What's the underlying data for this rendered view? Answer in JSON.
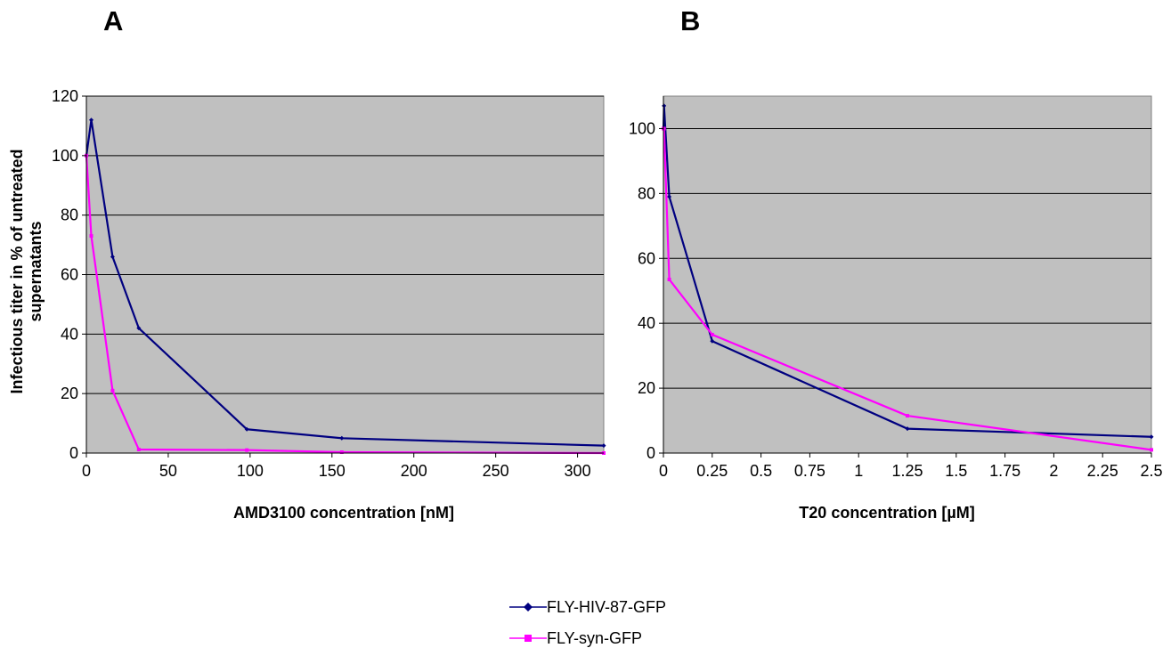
{
  "panels": [
    {
      "letter": "A",
      "ylabel_line1": "Infectious titer in % of untreated",
      "ylabel_line2": "supernatants",
      "xlabel": "AMD3100 concentration  [nM]",
      "xticks": [
        "0",
        "50",
        "100",
        "150",
        "200",
        "250",
        "300"
      ],
      "yticks": [
        "0",
        "20",
        "40",
        "60",
        "80",
        "100",
        "120"
      ]
    },
    {
      "letter": "B",
      "xlabel": "T20 concentration [µM]",
      "xticks": [
        "0",
        "0.25",
        "0.5",
        "0.75",
        "1",
        "1.25",
        "1.5",
        "1.75",
        "2",
        "2.25",
        "2.5"
      ],
      "yticks": [
        "0",
        "20",
        "40",
        "60",
        "80",
        "100"
      ]
    }
  ],
  "legend": {
    "series1": "FLY-HIV-87-GFP",
    "series2": "FLY-syn-GFP"
  },
  "colors": {
    "series1": "#000080",
    "series2": "#ff00ff",
    "plot_bg": "#c0c0c0"
  },
  "chart_data": [
    {
      "type": "line",
      "title": "A",
      "xlabel": "AMD3100 concentration  [nM]",
      "ylabel": "Infectious titer in % of untreated supernatants",
      "xlim": [
        0,
        316
      ],
      "ylim": [
        0,
        120
      ],
      "grid": true,
      "legend_position": "bottom",
      "series": [
        {
          "name": "FLY-HIV-87-GFP",
          "x": [
            0,
            3,
            16,
            32,
            98,
            156,
            316
          ],
          "y": [
            100,
            112,
            66,
            42,
            8,
            5,
            2.5
          ]
        },
        {
          "name": "FLY-syn-GFP",
          "x": [
            0,
            3,
            16,
            32,
            98,
            156,
            316
          ],
          "y": [
            100,
            73,
            21,
            1.2,
            1,
            0.3,
            0
          ]
        }
      ]
    },
    {
      "type": "line",
      "title": "B",
      "xlabel": "T20 concentration [µM]",
      "ylabel": "",
      "xlim": [
        0,
        2.5
      ],
      "ylim": [
        0,
        110
      ],
      "grid": true,
      "legend_position": "bottom",
      "series": [
        {
          "name": "FLY-HIV-87-GFP",
          "x": [
            0,
            0.003,
            0.03,
            0.25,
            1.25,
            2.5
          ],
          "y": [
            100,
            107,
            79,
            34.5,
            7.5,
            5
          ]
        },
        {
          "name": "FLY-syn-GFP",
          "x": [
            0,
            0.003,
            0.03,
            0.25,
            1.25,
            2.5
          ],
          "y": [
            100,
            100,
            53.5,
            36.5,
            11.5,
            1
          ]
        }
      ]
    }
  ]
}
